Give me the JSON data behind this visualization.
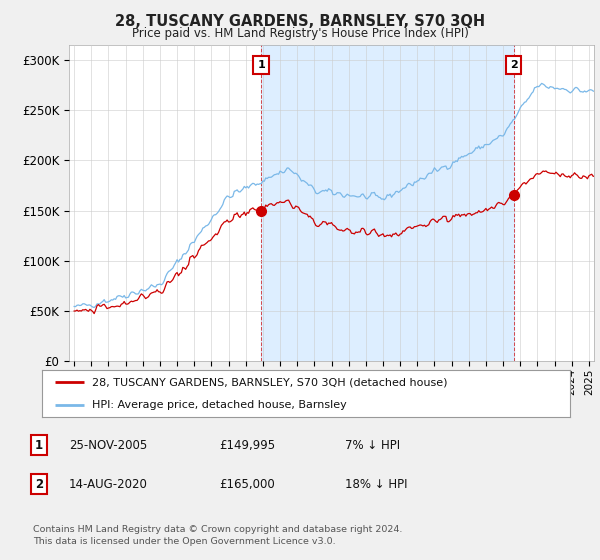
{
  "title": "28, TUSCANY GARDENS, BARNSLEY, S70 3QH",
  "subtitle": "Price paid vs. HM Land Registry's House Price Index (HPI)",
  "ylabel_ticks": [
    "£0",
    "£50K",
    "£100K",
    "£150K",
    "£200K",
    "£250K",
    "£300K"
  ],
  "ytick_values": [
    0,
    50000,
    100000,
    150000,
    200000,
    250000,
    300000
  ],
  "ylim": [
    0,
    315000
  ],
  "xlim_start": 1994.7,
  "xlim_end": 2025.3,
  "hpi_color": "#7ab8e8",
  "hpi_fill_color": "#ddeeff",
  "price_color": "#cc0000",
  "marker1_date": 2005.9,
  "marker1_value": 149995,
  "marker2_date": 2020.62,
  "marker2_value": 165000,
  "vline_color": "#cc0000",
  "shading_alpha": 0.25,
  "legend_label1": "28, TUSCANY GARDENS, BARNSLEY, S70 3QH (detached house)",
  "legend_label2": "HPI: Average price, detached house, Barnsley",
  "table_row1": [
    "1",
    "25-NOV-2005",
    "£149,995",
    "7% ↓ HPI"
  ],
  "table_row2": [
    "2",
    "14-AUG-2020",
    "£165,000",
    "18% ↓ HPI"
  ],
  "footnote": "Contains HM Land Registry data © Crown copyright and database right 2024.\nThis data is licensed under the Open Government Licence v3.0.",
  "background_color": "#f0f0f0",
  "plot_bg_color": "#ffffff"
}
